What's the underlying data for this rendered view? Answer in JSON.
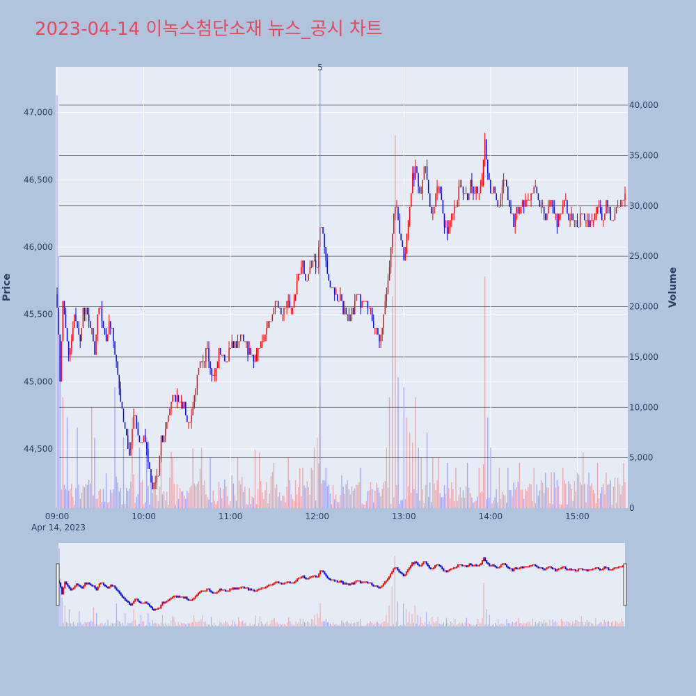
{
  "chart_data": {
    "type": "candlestick",
    "title": "2023-04-14 이녹스첨단소재 뉴스_공시 차트",
    "title_color": "#e8495a",
    "ylabel": "Price",
    "y2label": "Volume",
    "ylim": [
      44060,
      47340
    ],
    "y2lim": [
      0,
      43800
    ],
    "grid": true,
    "y_ticks": [
      "44,500",
      "45,000",
      "45,500",
      "46,000",
      "46,500",
      "47,000"
    ],
    "y_tick_values": [
      44500,
      45000,
      45500,
      46000,
      46500,
      47000
    ],
    "y2_ticks": [
      "0",
      "5,000",
      "10,000",
      "15,000",
      "20,000",
      "25,000",
      "30,000",
      "35,000",
      "40,000"
    ],
    "y2_tick_values": [
      0,
      5000,
      10000,
      15000,
      20000,
      25000,
      30000,
      35000,
      40000
    ],
    "x_range_min": [
      0,
      393
    ],
    "x_ticks": [
      "09:00",
      "10:00",
      "11:00",
      "12:00",
      "13:00",
      "14:00",
      "15:00"
    ],
    "x_tick_min": [
      0,
      60,
      120,
      180,
      240,
      300,
      360
    ],
    "x_date_label": "Apr 14, 2023",
    "annotation": {
      "text": "5",
      "minute": 182
    },
    "up_color": "#ff0000",
    "down_color": "#0000ff",
    "price_anchors": [
      [
        0,
        45600
      ],
      [
        2,
        45000
      ],
      [
        4,
        45600
      ],
      [
        6,
        45400
      ],
      [
        8,
        45200
      ],
      [
        10,
        45300
      ],
      [
        12,
        45500
      ],
      [
        14,
        45400
      ],
      [
        16,
        45300
      ],
      [
        18,
        45550
      ],
      [
        20,
        45500
      ],
      [
        22,
        45450
      ],
      [
        24,
        45350
      ],
      [
        26,
        45200
      ],
      [
        28,
        45500
      ],
      [
        30,
        45550
      ],
      [
        32,
        45400
      ],
      [
        34,
        45300
      ],
      [
        36,
        45450
      ],
      [
        38,
        45350
      ],
      [
        40,
        45200
      ],
      [
        42,
        45100
      ],
      [
        44,
        44850
      ],
      [
        46,
        44700
      ],
      [
        48,
        44600
      ],
      [
        50,
        44450
      ],
      [
        52,
        44650
      ],
      [
        54,
        44750
      ],
      [
        56,
        44600
      ],
      [
        58,
        44550
      ],
      [
        60,
        44600
      ],
      [
        62,
        44500
      ],
      [
        64,
        44350
      ],
      [
        66,
        44200
      ],
      [
        68,
        44250
      ],
      [
        70,
        44300
      ],
      [
        72,
        44550
      ],
      [
        74,
        44600
      ],
      [
        76,
        44700
      ],
      [
        78,
        44800
      ],
      [
        80,
        44900
      ],
      [
        82,
        44850
      ],
      [
        84,
        44900
      ],
      [
        86,
        44850
      ],
      [
        88,
        44800
      ],
      [
        90,
        44700
      ],
      [
        92,
        44700
      ],
      [
        94,
        44800
      ],
      [
        96,
        44950
      ],
      [
        98,
        45100
      ],
      [
        100,
        45150
      ],
      [
        102,
        45200
      ],
      [
        104,
        45300
      ],
      [
        106,
        45100
      ],
      [
        108,
        45050
      ],
      [
        110,
        45100
      ],
      [
        112,
        45250
      ],
      [
        114,
        45200
      ],
      [
        116,
        45150
      ],
      [
        118,
        45200
      ],
      [
        120,
        45250
      ],
      [
        122,
        45300
      ],
      [
        124,
        45250
      ],
      [
        126,
        45300
      ],
      [
        128,
        45350
      ],
      [
        130,
        45300
      ],
      [
        132,
        45250
      ],
      [
        134,
        45200
      ],
      [
        136,
        45150
      ],
      [
        138,
        45200
      ],
      [
        140,
        45250
      ],
      [
        142,
        45300
      ],
      [
        144,
        45350
      ],
      [
        146,
        45400
      ],
      [
        148,
        45450
      ],
      [
        150,
        45550
      ],
      [
        152,
        45600
      ],
      [
        154,
        45550
      ],
      [
        156,
        45500
      ],
      [
        158,
        45550
      ],
      [
        160,
        45600
      ],
      [
        162,
        45550
      ],
      [
        164,
        45600
      ],
      [
        166,
        45700
      ],
      [
        168,
        45800
      ],
      [
        170,
        45850
      ],
      [
        172,
        45750
      ],
      [
        174,
        45800
      ],
      [
        176,
        45850
      ],
      [
        178,
        45900
      ],
      [
        180,
        45850
      ],
      [
        182,
        46150
      ],
      [
        184,
        46100
      ],
      [
        186,
        45900
      ],
      [
        188,
        45750
      ],
      [
        190,
        45700
      ],
      [
        192,
        45650
      ],
      [
        194,
        45600
      ],
      [
        196,
        45650
      ],
      [
        198,
        45550
      ],
      [
        200,
        45500
      ],
      [
        202,
        45450
      ],
      [
        204,
        45500
      ],
      [
        206,
        45600
      ],
      [
        208,
        45650
      ],
      [
        210,
        45600
      ],
      [
        212,
        45650
      ],
      [
        214,
        45600
      ],
      [
        216,
        45550
      ],
      [
        218,
        45450
      ],
      [
        220,
        45400
      ],
      [
        222,
        45350
      ],
      [
        224,
        45300
      ],
      [
        226,
        45500
      ],
      [
        228,
        45650
      ],
      [
        230,
        45900
      ],
      [
        232,
        46100
      ],
      [
        234,
        46300
      ],
      [
        236,
        46200
      ],
      [
        238,
        46050
      ],
      [
        240,
        45900
      ],
      [
        242,
        46100
      ],
      [
        244,
        46300
      ],
      [
        246,
        46500
      ],
      [
        248,
        46600
      ],
      [
        250,
        46500
      ],
      [
        252,
        46400
      ],
      [
        254,
        46600
      ],
      [
        256,
        46500
      ],
      [
        258,
        46300
      ],
      [
        260,
        46200
      ],
      [
        262,
        46400
      ],
      [
        264,
        46450
      ],
      [
        266,
        46350
      ],
      [
        268,
        46150
      ],
      [
        270,
        46100
      ],
      [
        272,
        46200
      ],
      [
        274,
        46250
      ],
      [
        276,
        46300
      ],
      [
        278,
        46400
      ],
      [
        280,
        46450
      ],
      [
        282,
        46400
      ],
      [
        284,
        46350
      ],
      [
        286,
        46450
      ],
      [
        288,
        46400
      ],
      [
        290,
        46450
      ],
      [
        292,
        46400
      ],
      [
        294,
        46500
      ],
      [
        296,
        46800
      ],
      [
        298,
        46550
      ],
      [
        300,
        46400
      ],
      [
        302,
        46450
      ],
      [
        304,
        46350
      ],
      [
        306,
        46300
      ],
      [
        308,
        46450
      ],
      [
        310,
        46500
      ],
      [
        312,
        46350
      ],
      [
        314,
        46250
      ],
      [
        316,
        46200
      ],
      [
        318,
        46300
      ],
      [
        320,
        46250
      ],
      [
        322,
        46350
      ],
      [
        324,
        46300
      ],
      [
        326,
        46350
      ],
      [
        328,
        46400
      ],
      [
        330,
        46450
      ],
      [
        332,
        46400
      ],
      [
        334,
        46300
      ],
      [
        336,
        46250
      ],
      [
        338,
        46200
      ],
      [
        340,
        46300
      ],
      [
        342,
        46350
      ],
      [
        344,
        46300
      ],
      [
        346,
        46150
      ],
      [
        348,
        46250
      ],
      [
        350,
        46300
      ],
      [
        352,
        46350
      ],
      [
        354,
        46200
      ],
      [
        356,
        46250
      ],
      [
        358,
        46200
      ],
      [
        360,
        46150
      ],
      [
        362,
        46200
      ],
      [
        364,
        46250
      ],
      [
        366,
        46200
      ],
      [
        368,
        46150
      ],
      [
        370,
        46200
      ],
      [
        372,
        46250
      ],
      [
        374,
        46300
      ],
      [
        376,
        46200
      ],
      [
        378,
        46250
      ],
      [
        380,
        46300
      ],
      [
        382,
        46250
      ],
      [
        384,
        46200
      ],
      [
        386,
        46250
      ],
      [
        388,
        46300
      ],
      [
        390,
        46350
      ],
      [
        392,
        46400
      ]
    ],
    "volume_spikes": [
      [
        0,
        41000
      ],
      [
        1,
        25000
      ],
      [
        2,
        15000
      ],
      [
        4,
        11000
      ],
      [
        7,
        9000
      ],
      [
        14,
        8000
      ],
      [
        24,
        10000
      ],
      [
        26,
        7000
      ],
      [
        40,
        12000
      ],
      [
        46,
        7000
      ],
      [
        52,
        9000
      ],
      [
        57,
        6000
      ],
      [
        62,
        7000
      ],
      [
        72,
        6000
      ],
      [
        80,
        5000
      ],
      [
        100,
        6000
      ],
      [
        106,
        5000
      ],
      [
        125,
        5000
      ],
      [
        140,
        5500
      ],
      [
        150,
        4500
      ],
      [
        160,
        5000
      ],
      [
        170,
        4000
      ],
      [
        176,
        4000
      ],
      [
        178,
        6000
      ],
      [
        180,
        7000
      ],
      [
        182,
        12000
      ],
      [
        186,
        4000
      ],
      [
        210,
        4000
      ],
      [
        228,
        6000
      ],
      [
        230,
        11000
      ],
      [
        232,
        21000
      ],
      [
        234,
        37000
      ],
      [
        236,
        13000
      ],
      [
        240,
        12000
      ],
      [
        242,
        9000
      ],
      [
        244,
        7500
      ],
      [
        246,
        6500
      ],
      [
        248,
        11000
      ],
      [
        250,
        6000
      ],
      [
        252,
        5000
      ],
      [
        256,
        7500
      ],
      [
        260,
        5000
      ],
      [
        264,
        5000
      ],
      [
        270,
        4500
      ],
      [
        276,
        4000
      ],
      [
        284,
        4500
      ],
      [
        292,
        4000
      ],
      [
        296,
        23000
      ],
      [
        298,
        9000
      ],
      [
        300,
        6000
      ],
      [
        306,
        4000
      ],
      [
        312,
        4000
      ],
      [
        320,
        4500
      ],
      [
        330,
        4000
      ],
      [
        338,
        3500
      ],
      [
        350,
        4000
      ],
      [
        360,
        3500
      ],
      [
        368,
        3500
      ],
      [
        374,
        4500
      ],
      [
        380,
        3500
      ],
      [
        388,
        3000
      ],
      [
        392,
        4500
      ]
    ]
  }
}
